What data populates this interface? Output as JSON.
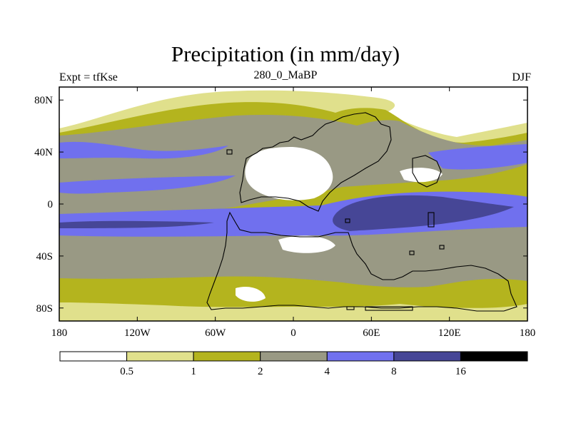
{
  "chart_data": {
    "type": "heatmap",
    "title": "Precipitation (in mm/day)",
    "subtitle_left": "Expt = tfKse",
    "subtitle_center": "280_0_MaBP",
    "subtitle_right": "DJF",
    "xlim": [
      -180,
      180
    ],
    "ylim": [
      -90,
      90
    ],
    "x_ticks": [
      {
        "value": -180,
        "label": "180"
      },
      {
        "value": -120,
        "label": "120W"
      },
      {
        "value": -60,
        "label": "60W"
      },
      {
        "value": 0,
        "label": "0"
      },
      {
        "value": 60,
        "label": "60E"
      },
      {
        "value": 120,
        "label": "120E"
      },
      {
        "value": 180,
        "label": "180"
      }
    ],
    "y_ticks": [
      {
        "value": 80,
        "label": "80N"
      },
      {
        "value": 40,
        "label": "40N"
      },
      {
        "value": 0,
        "label": "0"
      },
      {
        "value": -40,
        "label": "40S"
      },
      {
        "value": -80,
        "label": "80S"
      }
    ],
    "colorbar": {
      "levels": [
        0.5,
        1,
        2,
        4,
        8,
        16
      ],
      "labels": [
        "0.5",
        "1",
        "2",
        "4",
        "8",
        "16"
      ],
      "colors": [
        "#ffffff",
        "#e0e08c",
        "#b4b41e",
        "#999984",
        "#7070ee",
        "#464696",
        "#000000"
      ]
    }
  }
}
